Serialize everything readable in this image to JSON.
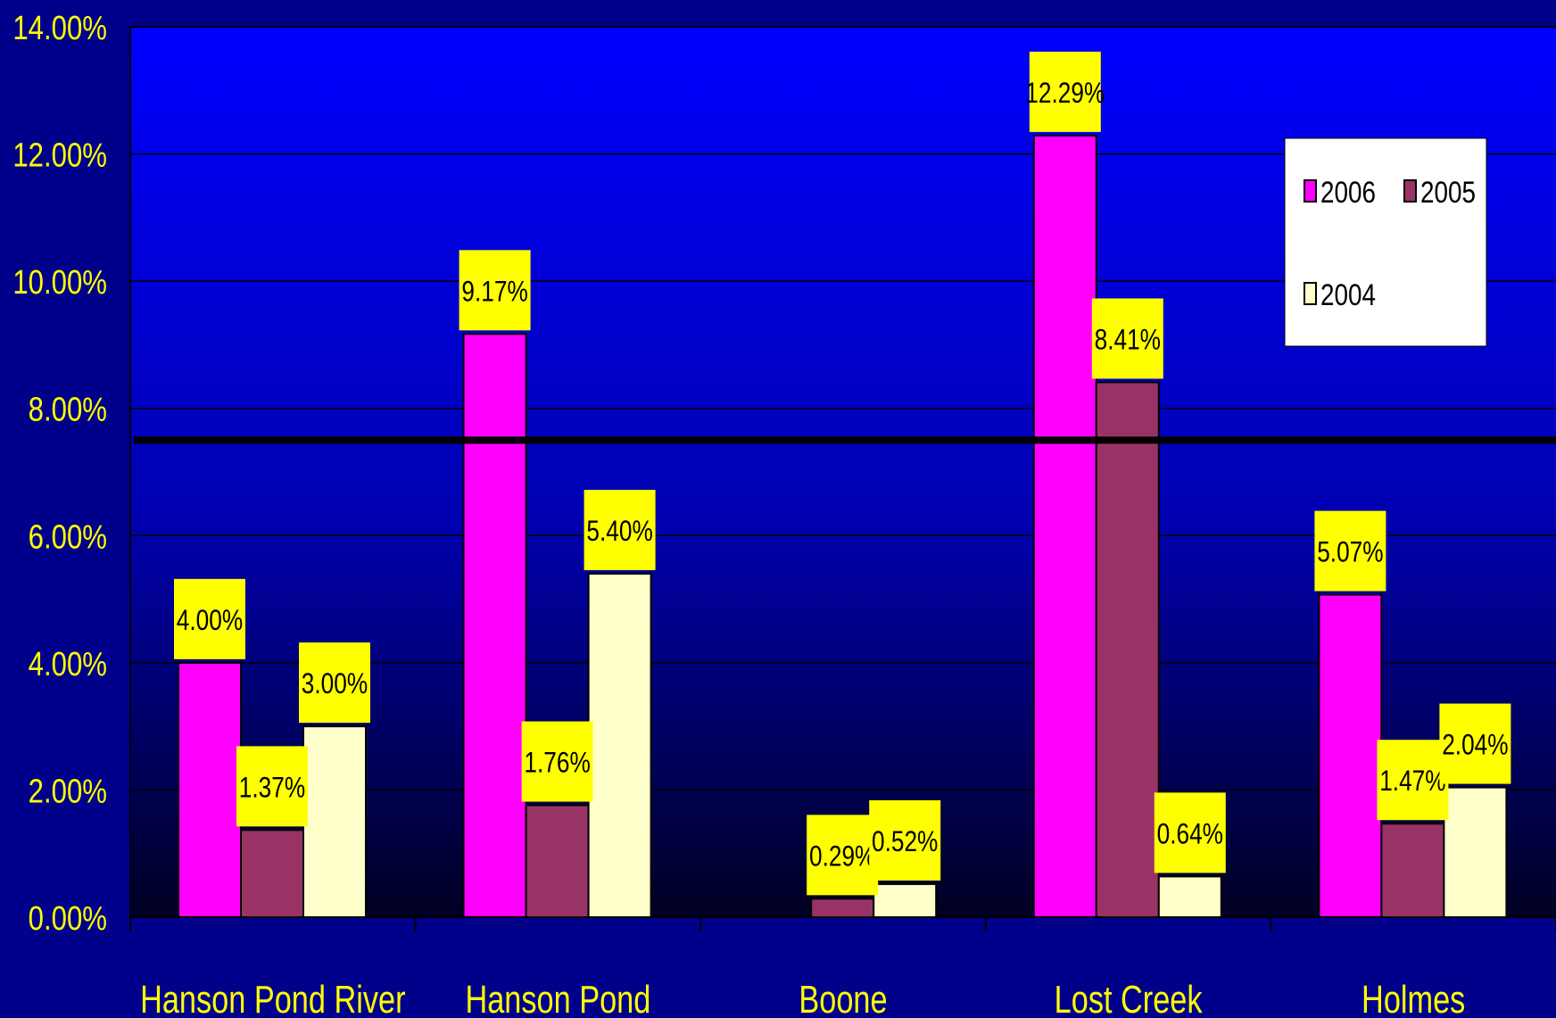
{
  "chart_data": {
    "type": "bar",
    "categories": [
      "Hanson Pond River",
      "Hanson Pond",
      "Boone",
      "Lost Creek",
      "Holmes"
    ],
    "series": [
      {
        "name": "2006",
        "color": "#ff00ff",
        "values": [
          4.0,
          9.17,
          null,
          12.29,
          5.07
        ],
        "labels": [
          "4.00%",
          "9.17%",
          "",
          "12.29%",
          "5.07%"
        ]
      },
      {
        "name": "2005",
        "color": "#993366",
        "values": [
          1.37,
          1.76,
          0.29,
          8.41,
          1.47
        ],
        "labels": [
          "1.37%",
          "1.76%",
          "0.29%",
          "8.41%",
          "1.47%"
        ]
      },
      {
        "name": "2004",
        "color": "#ffffcc",
        "values": [
          3.0,
          5.4,
          0.52,
          0.64,
          2.04
        ],
        "labels": [
          "3.00%",
          "5.40%",
          "0.52%",
          "0.64%",
          "2.04%"
        ]
      }
    ],
    "ylim": [
      0,
      14
    ],
    "yticks": [
      0,
      2,
      4,
      6,
      8,
      10,
      12,
      14
    ],
    "ytick_labels": [
      "0.00%",
      "2.00%",
      "4.00%",
      "6.00%",
      "8.00%",
      "10.00%",
      "12.00%",
      "14.00%"
    ],
    "reference_line": 7.5,
    "grid": true,
    "legend": {
      "position": "top-right",
      "entries": [
        "2006",
        "2005",
        "2004"
      ]
    },
    "colors": {
      "plot_top": "#0000ff",
      "plot_bottom": "#000022",
      "page_background": "#00008b",
      "axis_text": "#ffff00",
      "label_box": "#ffff00",
      "label_box_light": "#ffffcc",
      "reference_line": "#000000"
    }
  }
}
